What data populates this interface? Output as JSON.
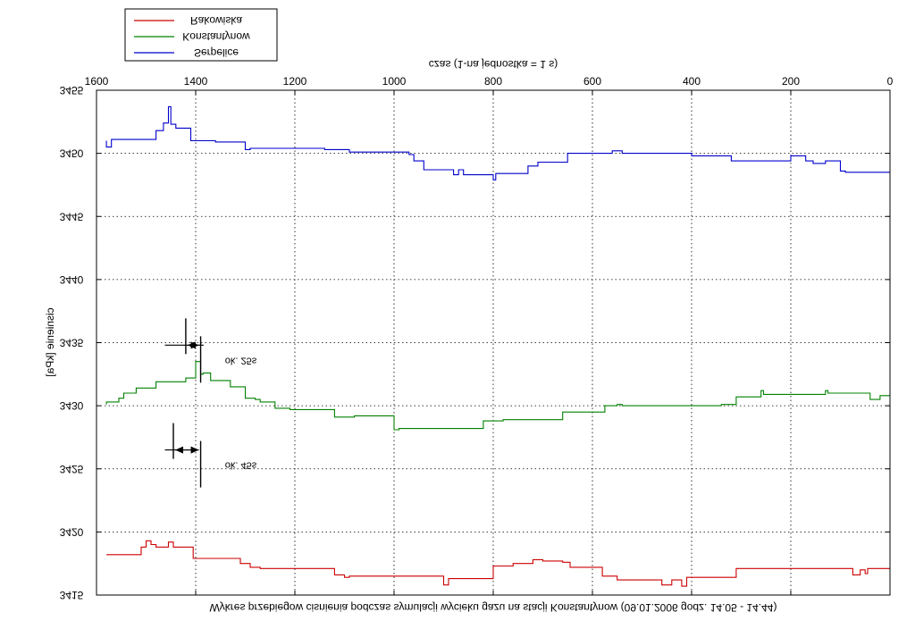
{
  "chart_data": {
    "type": "line",
    "title": "Wykres przebiegow cisnienia podczas symulacji wycieku gazu na stacji Konstantynow (09.01.2006 godz. 14.05 - 14.44)",
    "xlabel": "czas (1-na jednostka = 1 s)",
    "ylabel": "cisnienie [kPa]",
    "xlim": [
      0,
      1600
    ],
    "ylim": [
      3455,
      3415
    ],
    "y_inverted": true,
    "x_ticks": [
      "0",
      "200",
      "400",
      "600",
      "800",
      "1000",
      "1200",
      "1400",
      "1600"
    ],
    "y_ticks": [
      "3415",
      "3420",
      "3425",
      "3430",
      "3435",
      "3440",
      "3445",
      "3450",
      "3455"
    ],
    "grid": true,
    "legend_position": "top-left",
    "mirrored_horizontally": true,
    "series": [
      {
        "name": "Rakowiska",
        "color": "#cc0000",
        "points": [
          [
            0,
            3417.1
          ],
          [
            40,
            3417.1
          ],
          [
            45,
            3416.7
          ],
          [
            50,
            3417.0
          ],
          [
            60,
            3416.6
          ],
          [
            75,
            3417.1
          ],
          [
            160,
            3417.1
          ],
          [
            235,
            3417.1
          ],
          [
            310,
            3416.4
          ],
          [
            400,
            3416.4
          ],
          [
            410,
            3415.7
          ],
          [
            420,
            3416.2
          ],
          [
            440,
            3415.8
          ],
          [
            460,
            3416.2
          ],
          [
            540,
            3416.2
          ],
          [
            550,
            3416.5
          ],
          [
            580,
            3417.2
          ],
          [
            640,
            3417.2
          ],
          [
            645,
            3417.6
          ],
          [
            660,
            3417.7
          ],
          [
            700,
            3417.8
          ],
          [
            720,
            3417.5
          ],
          [
            760,
            3417.3
          ],
          [
            795,
            3417.3
          ],
          [
            800,
            3416.3
          ],
          [
            880,
            3416.3
          ],
          [
            890,
            3415.8
          ],
          [
            900,
            3416.5
          ],
          [
            1090,
            3416.4
          ],
          [
            1100,
            3416.6
          ],
          [
            1120,
            3417.1
          ],
          [
            1270,
            3417.2
          ],
          [
            1290,
            3417.5
          ],
          [
            1310,
            3417.9
          ],
          [
            1400,
            3417.9
          ],
          [
            1405,
            3418.8
          ],
          [
            1440,
            3418.8
          ],
          [
            1445,
            3419.2
          ],
          [
            1455,
            3418.8
          ],
          [
            1480,
            3419.0
          ],
          [
            1490,
            3419.3
          ],
          [
            1500,
            3418.8
          ],
          [
            1510,
            3418.2
          ],
          [
            1550,
            3418.2
          ],
          [
            1580,
            3418.2
          ]
        ]
      },
      {
        "name": "Konstantynow",
        "color": "#008000",
        "points": [
          [
            0,
            3430.8
          ],
          [
            20,
            3430.5
          ],
          [
            30,
            3430.5
          ],
          [
            40,
            3431.0
          ],
          [
            120,
            3431.0
          ],
          [
            125,
            3431.2
          ],
          [
            130,
            3430.9
          ],
          [
            160,
            3430.9
          ],
          [
            240,
            3430.9
          ],
          [
            255,
            3431.2
          ],
          [
            260,
            3430.7
          ],
          [
            310,
            3430.1
          ],
          [
            340,
            3430.0
          ],
          [
            540,
            3430.1
          ],
          [
            550,
            3430.0
          ],
          [
            575,
            3429.5
          ],
          [
            620,
            3429.5
          ],
          [
            660,
            3428.9
          ],
          [
            725,
            3428.9
          ],
          [
            780,
            3428.8
          ],
          [
            820,
            3428.2
          ],
          [
            900,
            3428.2
          ],
          [
            990,
            3428.1
          ],
          [
            1000,
            3429.2
          ],
          [
            1080,
            3429.1
          ],
          [
            1120,
            3429.7
          ],
          [
            1210,
            3429.8
          ],
          [
            1240,
            3430.3
          ],
          [
            1270,
            3430.5
          ],
          [
            1280,
            3430.6
          ],
          [
            1300,
            3431.5
          ],
          [
            1330,
            3432.0
          ],
          [
            1370,
            3432.6
          ],
          [
            1385,
            3432.5
          ],
          [
            1390,
            3433.5
          ],
          [
            1400,
            3432.2
          ],
          [
            1420,
            3431.9
          ],
          [
            1440,
            3431.9
          ],
          [
            1480,
            3431.4
          ],
          [
            1520,
            3431.0
          ],
          [
            1545,
            3430.6
          ],
          [
            1555,
            3430.3
          ],
          [
            1580,
            3430.1
          ]
        ]
      },
      {
        "name": "Serpelice",
        "color": "#0000cc",
        "points": [
          [
            0,
            3448.5
          ],
          [
            90,
            3448.6
          ],
          [
            100,
            3449.4
          ],
          [
            130,
            3449.2
          ],
          [
            155,
            3449.4
          ],
          [
            170,
            3449.8
          ],
          [
            180,
            3449.8
          ],
          [
            200,
            3449.4
          ],
          [
            260,
            3449.4
          ],
          [
            320,
            3449.8
          ],
          [
            400,
            3450.0
          ],
          [
            540,
            3450.2
          ],
          [
            560,
            3450.0
          ],
          [
            630,
            3450.0
          ],
          [
            650,
            3449.3
          ],
          [
            710,
            3449.0
          ],
          [
            730,
            3448.4
          ],
          [
            785,
            3448.4
          ],
          [
            795,
            3447.9
          ],
          [
            800,
            3448.3
          ],
          [
            860,
            3448.7
          ],
          [
            870,
            3448.3
          ],
          [
            880,
            3448.7
          ],
          [
            900,
            3448.7
          ],
          [
            940,
            3449.4
          ],
          [
            960,
            3449.9
          ],
          [
            970,
            3450.1
          ],
          [
            1060,
            3450.1
          ],
          [
            1090,
            3450.3
          ],
          [
            1140,
            3450.4
          ],
          [
            1270,
            3450.4
          ],
          [
            1290,
            3450.3
          ],
          [
            1300,
            3450.9
          ],
          [
            1360,
            3451.0
          ],
          [
            1400,
            3451.0
          ],
          [
            1410,
            3452.0
          ],
          [
            1430,
            3452.0
          ],
          [
            1440,
            3452.3
          ],
          [
            1450,
            3453.7
          ],
          [
            1455,
            3452.4
          ],
          [
            1465,
            3451.8
          ],
          [
            1480,
            3451.1
          ],
          [
            1530,
            3451.1
          ],
          [
            1570,
            3450.5
          ],
          [
            1580,
            3451.0
          ]
        ]
      }
    ],
    "annotations": [
      {
        "text": "ok. 45s",
        "x_from": 1390,
        "x_to": 1445,
        "y_value": 3426.5
      },
      {
        "text": "ok. 25s",
        "x_from": 1390,
        "x_to": 1420,
        "y_value": 3434.8
      }
    ]
  }
}
